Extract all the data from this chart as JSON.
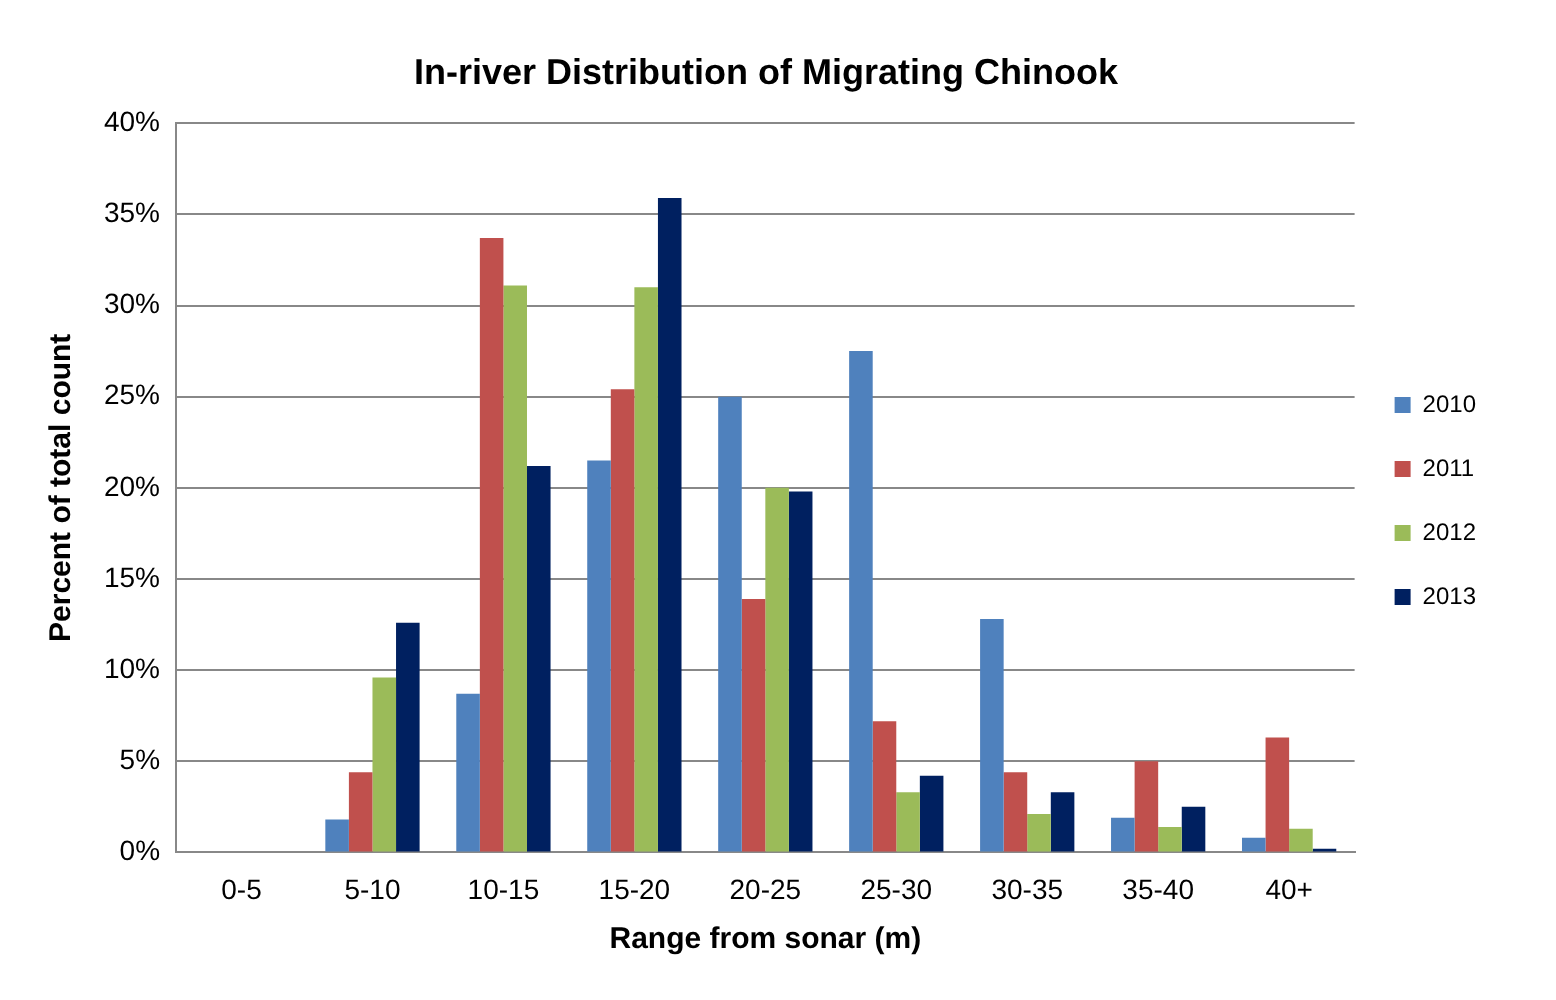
{
  "chart_data": {
    "type": "bar",
    "title": "In-river Distribution of Migrating Chinook",
    "xlabel": "Range from sonar (m)",
    "ylabel": "Percent of total count",
    "categories": [
      "0-5",
      "5-10",
      "10-15",
      "15-20",
      "20-25",
      "25-30",
      "30-35",
      "35-40",
      "40+"
    ],
    "series": [
      {
        "name": "2010",
        "color": "#4f81bd",
        "values": [
          0,
          1.8,
          8.7,
          21.5,
          25.0,
          27.5,
          12.8,
          1.9,
          0.8
        ]
      },
      {
        "name": "2011",
        "color": "#c0504d",
        "values": [
          0,
          4.4,
          33.7,
          25.4,
          13.9,
          7.2,
          4.4,
          5.0,
          6.3
        ]
      },
      {
        "name": "2012",
        "color": "#9bbb59",
        "values": [
          0,
          9.6,
          31.1,
          31.0,
          20.0,
          3.3,
          2.1,
          1.4,
          1.3
        ]
      },
      {
        "name": "2013",
        "color": "#002060",
        "values": [
          0,
          12.6,
          21.2,
          35.9,
          19.8,
          4.2,
          3.3,
          2.5,
          0.2
        ]
      }
    ],
    "ylim": [
      0,
      40
    ],
    "yticks": [
      {
        "value": 0,
        "label": "0%"
      },
      {
        "value": 5,
        "label": "5%"
      },
      {
        "value": 10,
        "label": "10%"
      },
      {
        "value": 15,
        "label": "15%"
      },
      {
        "value": 20,
        "label": "20%"
      },
      {
        "value": 25,
        "label": "25%"
      },
      {
        "value": 30,
        "label": "30%"
      },
      {
        "value": 35,
        "label": "35%"
      },
      {
        "value": 40,
        "label": "40%"
      }
    ],
    "grid": "y",
    "legend": "right"
  }
}
